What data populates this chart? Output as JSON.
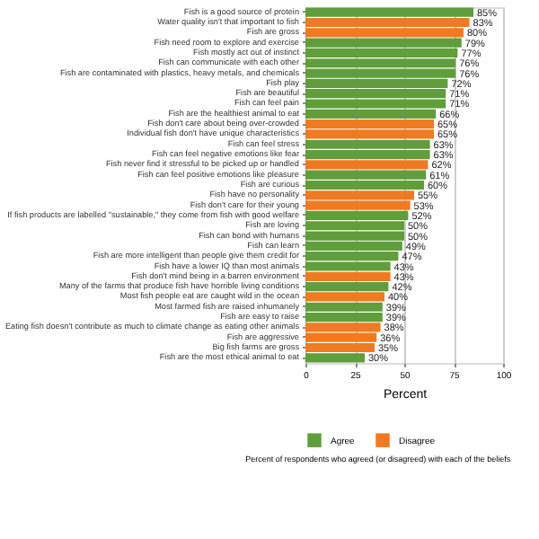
{
  "chart_data": {
    "type": "bar",
    "orientation": "horizontal",
    "categories": [
      "Fish is a good source of protein",
      "Water quality isn't that important to fish",
      "Fish are gross",
      "Fish need room to explore and exercise",
      "Fish mostly act out of instinct",
      "Fish can communicate with each other",
      "Fish are contaminated with plastics, heavy metals, and chemicals",
      "Fish play",
      "Fish are beautiful",
      "Fish can feel pain",
      "Fish are the healthiest animal to eat",
      "Fish don't care about being over-crowded",
      "Individual fish don't have unique characteristics",
      "Fish can feel stress",
      "Fish can feel negative emotions like fear",
      "Fish never find it stressful to be picked up or handled",
      "Fish can feel positive emotions like pleasure",
      "Fish are curious",
      "Fish have no personality",
      "Fish don't care for their young",
      "If fish products are labelled \"sustainable,\" they come from fish with good welfare",
      "Fish are loving",
      "Fish can bond with humans",
      "Fish can learn",
      "Fish are more intelligent than people give them credit for",
      "Fish have a lower IQ than most animals",
      "Fish don't mind being in a barren environment",
      "Many of the farms that produce fish have horrible living conditions",
      "Most fish people eat are caught wild in the ocean",
      "Most farmed fish are raised inhumanely",
      "Fish are easy to raise",
      "Eating fish doesn't contribute as much to climate change as eating other animals",
      "Fish are aggressive",
      "Big fish farms are gross",
      "Fish are the most ethical animal to eat"
    ],
    "series": [
      {
        "name": "Agree",
        "color": "#5f9e3a",
        "values": [
          85,
          null,
          null,
          79,
          77,
          76,
          76,
          72,
          71,
          71,
          66,
          null,
          null,
          63,
          63,
          null,
          61,
          60,
          null,
          null,
          52,
          50,
          50,
          49,
          47,
          43,
          null,
          42,
          null,
          39,
          39,
          null,
          null,
          null,
          30
        ],
        "value_labels": [
          "85%",
          null,
          null,
          "79%",
          "77%",
          "76%",
          "76%",
          "72%",
          "71%",
          "71%",
          "66%",
          null,
          null,
          "63%",
          "63%",
          null,
          "61%",
          "60%",
          null,
          null,
          "52%",
          "50%",
          "50%",
          "49%",
          "47%",
          "43%",
          null,
          "42%",
          null,
          "39%",
          "39%",
          null,
          null,
          null,
          "30%"
        ]
      },
      {
        "name": "Disagree",
        "color": "#f07a21",
        "values": [
          null,
          83,
          80,
          null,
          null,
          null,
          null,
          null,
          null,
          null,
          null,
          65,
          65,
          null,
          null,
          62,
          null,
          null,
          55,
          53,
          null,
          null,
          null,
          null,
          null,
          null,
          43,
          null,
          40,
          null,
          null,
          38,
          36,
          35,
          null
        ],
        "value_labels": [
          null,
          "83%",
          "80%",
          null,
          null,
          null,
          null,
          null,
          null,
          null,
          null,
          "65%",
          "65%",
          null,
          null,
          "62%",
          null,
          null,
          "55%",
          "53%",
          null,
          null,
          null,
          null,
          null,
          null,
          "43%",
          null,
          "40%",
          null,
          null,
          "38%",
          "36%",
          "35%",
          null
        ]
      }
    ],
    "xlim": [
      0,
      100
    ],
    "xticks": [
      0,
      25,
      50,
      75,
      100
    ],
    "xlabel": "Percent",
    "grid": "x",
    "legend": "bottom",
    "annotations": [
      "Percent of respondents who agreed (or disagreed) with each of the beliefs"
    ]
  }
}
